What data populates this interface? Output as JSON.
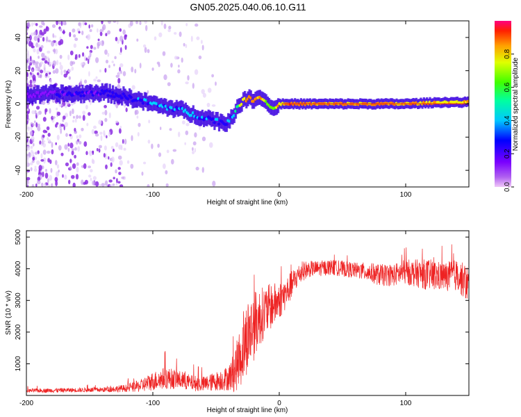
{
  "title": "GN05.2025.040.06.10.G11",
  "colors": {
    "snr_line": "#ee2222",
    "ridge_core": "#dd2222"
  },
  "chart_data": [
    {
      "id": "spectrogram",
      "type": "heatmap",
      "xlabel": "Height of straight line (km)",
      "ylabel": "Frequency (Hz)",
      "xlim": [
        -200,
        150
      ],
      "ylim": [
        -50,
        50
      ],
      "xticks": [
        -200,
        -100,
        0,
        100
      ],
      "yticks": [
        -40,
        -20,
        0,
        20,
        40
      ],
      "colorbar": {
        "label": "Normalized spectral amplitude",
        "ticks": [
          "0.0",
          "0.2",
          "0.4",
          "0.6",
          "0.8"
        ],
        "colormap": "rainbow (magenta-blue-cyan-green-yellow-red)",
        "range": [
          0,
          1
        ]
      },
      "ridge": {
        "x": [
          -200,
          -180,
          -160,
          -140,
          -125,
          -110,
          -100,
          -90,
          -80,
          -70,
          -60,
          -50,
          -42,
          -38,
          -33,
          -30,
          -25,
          -20,
          -15,
          -10,
          -5,
          -2,
          0,
          10,
          30,
          60,
          100,
          130,
          150
        ],
        "freq": [
          5,
          6,
          6,
          7,
          5,
          2,
          0,
          -2,
          -3,
          -6,
          -8,
          -10,
          -12,
          -8,
          -3,
          1,
          3,
          3,
          4,
          1,
          -3,
          -2,
          0,
          0,
          0,
          0,
          0,
          1,
          1
        ],
        "amplitude": [
          0.2,
          0.25,
          0.3,
          0.3,
          0.35,
          0.4,
          0.45,
          0.45,
          0.45,
          0.45,
          0.4,
          0.4,
          0.35,
          0.45,
          0.6,
          0.8,
          0.95,
          0.95,
          0.9,
          0.8,
          0.7,
          0.8,
          0.9,
          0.95,
          0.9,
          0.9,
          0.9,
          0.85,
          0.85
        ]
      },
      "noise_region_x": [
        -200,
        -110
      ]
    },
    {
      "id": "snr",
      "type": "line",
      "xlabel": "Height of straight line (km)",
      "ylabel": "SNR (10 * v/v)",
      "xlim": [
        -200,
        150
      ],
      "ylim": [
        0,
        5200
      ],
      "xticks": [
        -200,
        -100,
        0,
        100
      ],
      "yticks": [
        1000,
        2000,
        3000,
        4000,
        5000
      ],
      "envelope": {
        "x": [
          -200,
          -180,
          -160,
          -140,
          -120,
          -110,
          -100,
          -90,
          -80,
          -70,
          -60,
          -50,
          -40,
          -35,
          -30,
          -25,
          -20,
          -15,
          -10,
          -5,
          0,
          5,
          10,
          15,
          20,
          25,
          30,
          40,
          50,
          60,
          70,
          80,
          90,
          100,
          110,
          120,
          130,
          140,
          150
        ],
        "mean": [
          150,
          160,
          170,
          180,
          230,
          300,
          450,
          550,
          500,
          400,
          350,
          450,
          550,
          800,
          1300,
          1900,
          2200,
          2500,
          2700,
          2850,
          3000,
          3200,
          3500,
          3800,
          3950,
          4000,
          4000,
          4050,
          4000,
          3950,
          3900,
          3800,
          3800,
          3900,
          3850,
          3800,
          3750,
          3800,
          3500
        ],
        "spread": [
          60,
          70,
          70,
          80,
          120,
          200,
          300,
          350,
          300,
          250,
          250,
          300,
          400,
          700,
          1000,
          1200,
          1100,
          900,
          800,
          700,
          600,
          500,
          450,
          350,
          300,
          250,
          250,
          250,
          250,
          250,
          300,
          350,
          350,
          400,
          450,
          500,
          450,
          500,
          600
        ]
      }
    }
  ]
}
